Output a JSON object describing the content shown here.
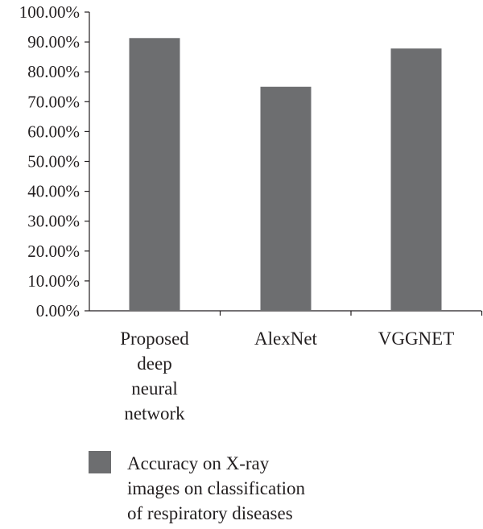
{
  "chart_data": {
    "type": "bar",
    "categories": [
      [
        "Proposed",
        "deep",
        "neural",
        "network"
      ],
      [
        "AlexNet"
      ],
      [
        "VGGNET"
      ]
    ],
    "series": [
      {
        "name": [
          "Accuracy on X-ray",
          "images on classification",
          "of respiratory diseases"
        ],
        "values": [
          91.3,
          75.0,
          87.8
        ],
        "color": "#6d6e70"
      }
    ],
    "ylim": [
      0,
      100
    ],
    "yticks": [
      "0.00%",
      "10.00%",
      "20.00%",
      "30.00%",
      "40.00%",
      "50.00%",
      "60.00%",
      "70.00%",
      "80.00%",
      "90.00%",
      "100.00%"
    ],
    "grid": false,
    "legend_position": "bottom"
  }
}
